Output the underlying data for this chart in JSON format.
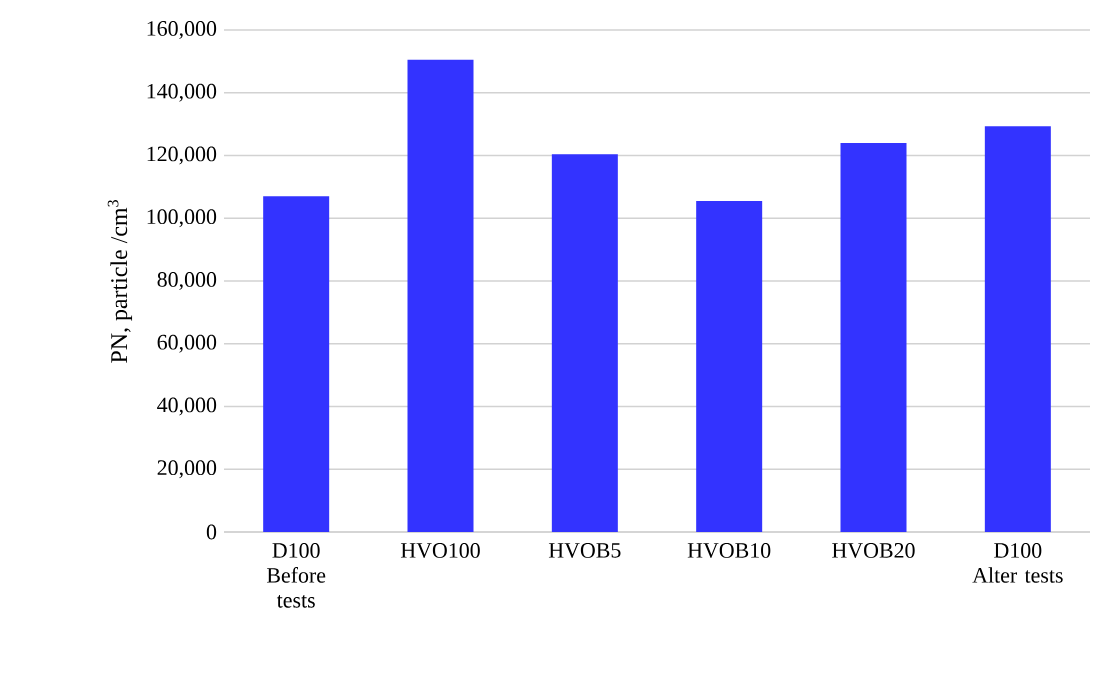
{
  "chart_data": {
    "type": "bar",
    "ylabel": "PN, particle /cm$^{3}$",
    "categories": [
      "D100 Before tests",
      "HVO100",
      "HVOB5",
      "HVOB10",
      "HVOB20",
      "D100 Alter tests"
    ],
    "values": [
      107000,
      150500,
      120400,
      105500,
      124000,
      129300
    ],
    "color": "#3333ff",
    "ylim": [
      0,
      160000
    ],
    "yticks": [
      {
        "value": 0,
        "label": "0"
      },
      {
        "value": 20000,
        "label": "20,000"
      },
      {
        "value": 40000,
        "label": "40,000"
      },
      {
        "value": 60000,
        "label": "60,000"
      },
      {
        "value": 80000,
        "label": "80,000"
      },
      {
        "value": 100000,
        "label": "100,000"
      },
      {
        "value": 120000,
        "label": "120,000"
      },
      {
        "value": 140000,
        "label": "140,000"
      },
      {
        "value": 160000,
        "label": "160,000"
      }
    ],
    "grid": "y"
  }
}
